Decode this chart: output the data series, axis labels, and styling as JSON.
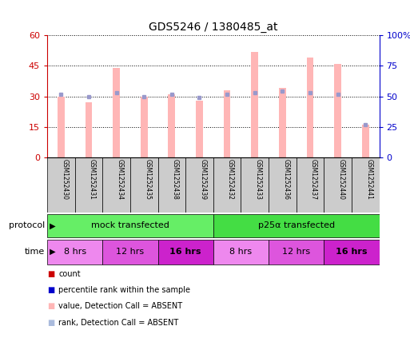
{
  "title": "GDS5246 / 1380485_at",
  "samples": [
    "GSM1252430",
    "GSM1252431",
    "GSM1252434",
    "GSM1252435",
    "GSM1252438",
    "GSM1252439",
    "GSM1252432",
    "GSM1252433",
    "GSM1252436",
    "GSM1252437",
    "GSM1252440",
    "GSM1252441"
  ],
  "bar_values": [
    30,
    27,
    44,
    30,
    31,
    28,
    33,
    52,
    34,
    49,
    46,
    16
  ],
  "rank_values": [
    52,
    50,
    53,
    50,
    52,
    49,
    52,
    53,
    54,
    53,
    52,
    27
  ],
  "ylim_left": [
    0,
    60
  ],
  "ylim_right": [
    0,
    100
  ],
  "yticks_left": [
    0,
    15,
    30,
    45,
    60
  ],
  "yticks_right": [
    0,
    25,
    50,
    75,
    100
  ],
  "ytick_labels_left": [
    "0",
    "15",
    "30",
    "45",
    "60"
  ],
  "ytick_labels_right": [
    "0",
    "25",
    "50",
    "75",
    "100%"
  ],
  "bar_color": "#FFB6B6",
  "rank_color": "#9999CC",
  "protocol_groups": [
    {
      "label": "mock transfected",
      "start": 0,
      "end": 6,
      "color": "#66EE66"
    },
    {
      "label": "p25α transfected",
      "start": 6,
      "end": 12,
      "color": "#44DD44"
    }
  ],
  "time_groups": [
    {
      "label": "8 hrs",
      "start": 0,
      "end": 2,
      "color": "#EE88EE"
    },
    {
      "label": "12 hrs",
      "start": 2,
      "end": 4,
      "color": "#DD55DD"
    },
    {
      "label": "16 hrs",
      "start": 4,
      "end": 6,
      "color": "#CC22CC"
    },
    {
      "label": "8 hrs",
      "start": 6,
      "end": 8,
      "color": "#EE88EE"
    },
    {
      "label": "12 hrs",
      "start": 8,
      "end": 10,
      "color": "#DD55DD"
    },
    {
      "label": "16 hrs",
      "start": 10,
      "end": 12,
      "color": "#CC22CC"
    }
  ],
  "sample_bg_color": "#CCCCCC",
  "background_color": "#FFFFFF",
  "left_axis_color": "#CC0000",
  "right_axis_color": "#0000CC",
  "legend_items": [
    {
      "color": "#CC0000",
      "label": "count"
    },
    {
      "color": "#0000CC",
      "label": "percentile rank within the sample"
    },
    {
      "color": "#FFB6B6",
      "label": "value, Detection Call = ABSENT"
    },
    {
      "color": "#AABBDD",
      "label": "rank, Detection Call = ABSENT"
    }
  ]
}
